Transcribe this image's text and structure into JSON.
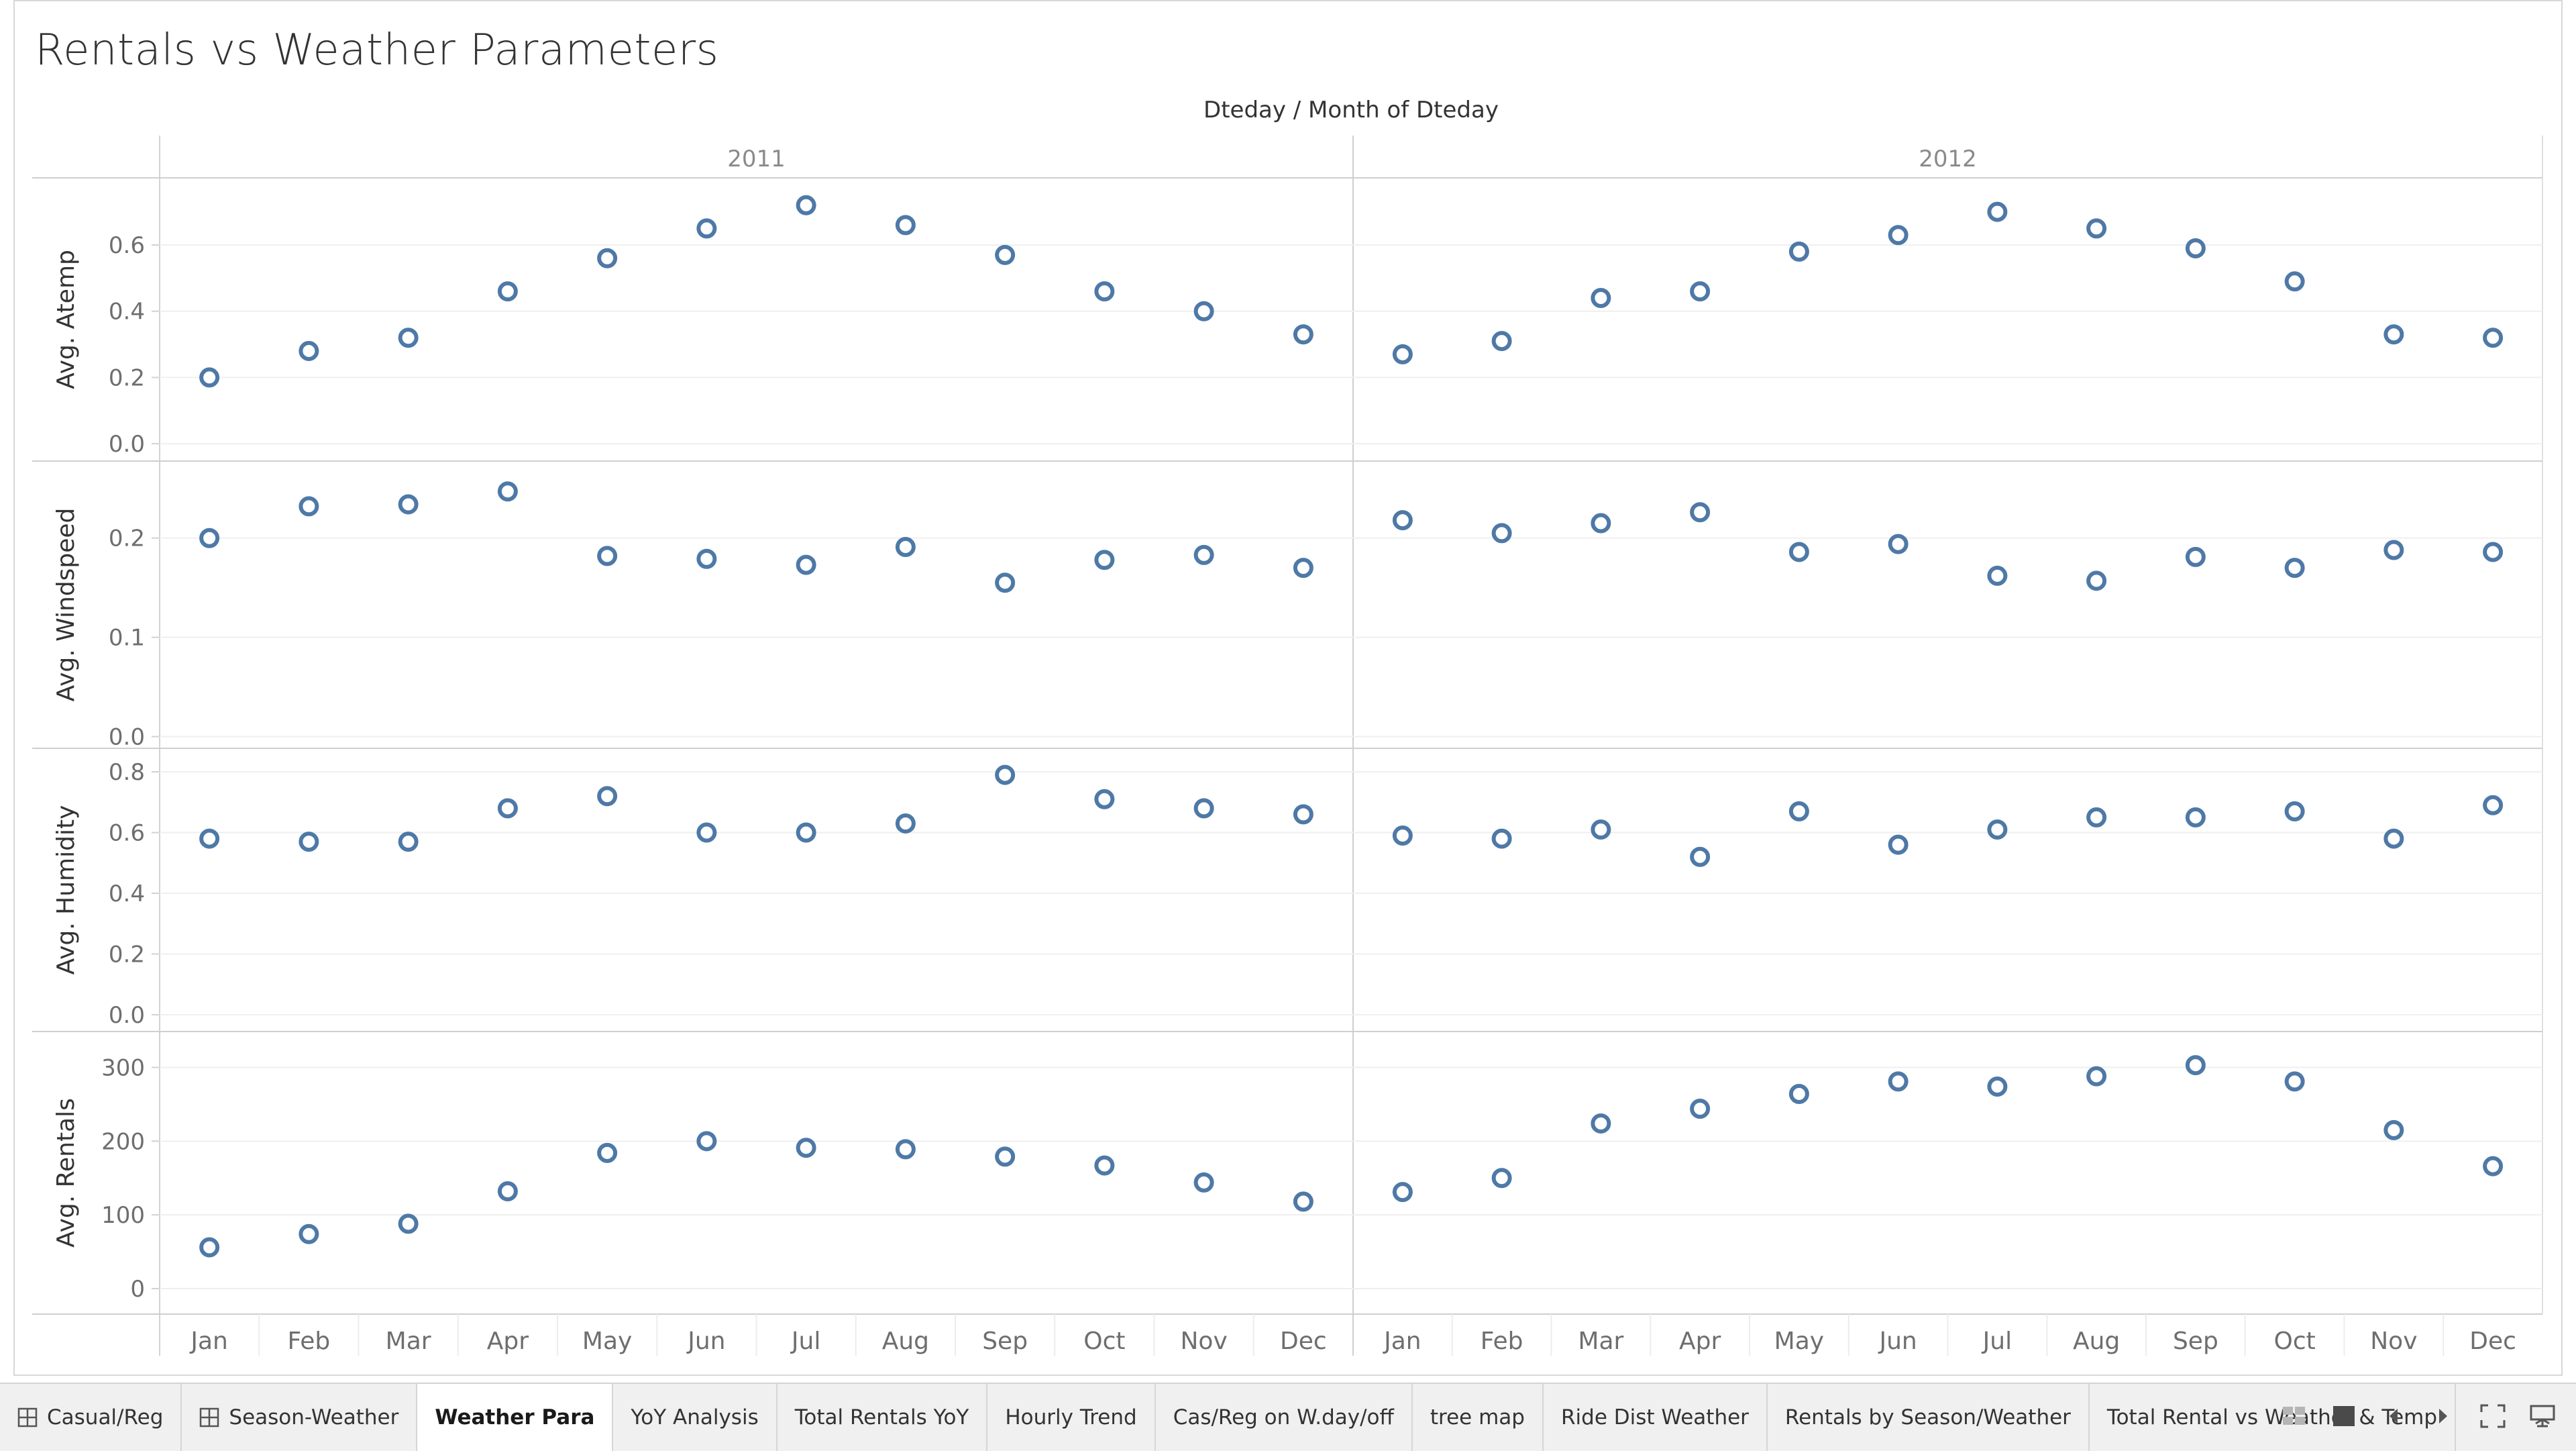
{
  "page": {
    "title": "Rentals vs Weather Parameters"
  },
  "chart_data": {
    "type": "scatter",
    "title": "Rentals vs Weather Parameters",
    "column_header": "Dteday  /  Month of Dteday",
    "years": [
      "2011",
      "2012"
    ],
    "months": [
      "Jan",
      "Feb",
      "Mar",
      "Apr",
      "May",
      "Jun",
      "Jul",
      "Aug",
      "Sep",
      "Oct",
      "Nov",
      "Dec"
    ],
    "marker_color": "#4e79a7",
    "grid": true,
    "panels": [
      {
        "label": "Avg. Atemp",
        "ylim": [
          -0.02,
          0.75
        ],
        "ticks": [
          0.0,
          0.2,
          0.4,
          0.6
        ],
        "tick_labels": [
          "0.0",
          "0.2",
          "0.4",
          "0.6"
        ],
        "series": {
          "2011": [
            0.2,
            0.28,
            0.32,
            0.46,
            0.56,
            0.65,
            0.72,
            0.66,
            0.57,
            0.46,
            0.4,
            0.33
          ],
          "2012": [
            0.27,
            0.31,
            0.44,
            0.46,
            0.58,
            0.63,
            0.7,
            0.65,
            0.59,
            0.49,
            0.33,
            0.32
          ]
        }
      },
      {
        "label": "Avg. Windspeed",
        "ylim": [
          -0.001,
          0.26
        ],
        "ticks": [
          0.0,
          0.1,
          0.2
        ],
        "tick_labels": [
          "0.0",
          "0.1",
          "0.2"
        ],
        "series": {
          "2011": [
            0.2,
            0.232,
            0.234,
            0.247,
            0.182,
            0.179,
            0.173,
            0.191,
            0.155,
            0.178,
            0.183,
            0.17
          ],
          "2012": [
            0.218,
            0.205,
            0.215,
            0.226,
            0.186,
            0.194,
            0.162,
            0.157,
            0.181,
            0.17,
            0.188,
            0.186
          ]
        }
      },
      {
        "label": "Avg. Humidity",
        "ylim": [
          -0.02,
          0.82
        ],
        "ticks": [
          0.0,
          0.2,
          0.4,
          0.6,
          0.8
        ],
        "tick_labels": [
          "0.0",
          "0.2",
          "0.4",
          "0.6",
          "0.8"
        ],
        "series": {
          "2011": [
            0.58,
            0.57,
            0.57,
            0.68,
            0.72,
            0.6,
            0.6,
            0.63,
            0.79,
            0.71,
            0.68,
            0.66
          ],
          "2012": [
            0.59,
            0.58,
            0.61,
            0.52,
            0.67,
            0.56,
            0.61,
            0.65,
            0.65,
            0.67,
            0.58,
            0.69
          ]
        }
      },
      {
        "label": "Avg. Rentals",
        "ylim": [
          -20,
          325
        ],
        "ticks": [
          0,
          100,
          200,
          300
        ],
        "tick_labels": [
          "0",
          "100",
          "200",
          "300"
        ],
        "series": {
          "2011": [
            56,
            74,
            88,
            132,
            184,
            200,
            191,
            189,
            179,
            167,
            144,
            118
          ],
          "2012": [
            131,
            150,
            224,
            244,
            264,
            281,
            274,
            288,
            303,
            281,
            215,
            166
          ]
        }
      }
    ]
  },
  "tabs": [
    {
      "label": "Casual/Reg",
      "icon": "grid-icon",
      "active": false
    },
    {
      "label": "Season-Weather",
      "icon": "grid-icon",
      "active": false
    },
    {
      "label": "Weather Para",
      "icon": "",
      "active": true
    },
    {
      "label": "YoY Analysis",
      "icon": "",
      "active": false
    },
    {
      "label": "Total Rentals YoY",
      "icon": "",
      "active": false
    },
    {
      "label": "Hourly Trend",
      "icon": "",
      "active": false
    },
    {
      "label": "Cas/Reg on W.day/off",
      "icon": "",
      "active": false
    },
    {
      "label": "tree map",
      "icon": "",
      "active": false
    },
    {
      "label": "Ride Dist Weather",
      "icon": "",
      "active": false
    },
    {
      "label": "Rentals by Season/Weather",
      "icon": "",
      "active": false
    },
    {
      "label": "Total Rental vs Weather & Temp",
      "icon": "",
      "active": false
    }
  ],
  "controls": [
    "sheet-sorter-icon",
    "filmstrip-icon",
    "previous-sheet-icon",
    "next-sheet-icon",
    "fullscreen-icon",
    "presentation-mode-icon"
  ]
}
